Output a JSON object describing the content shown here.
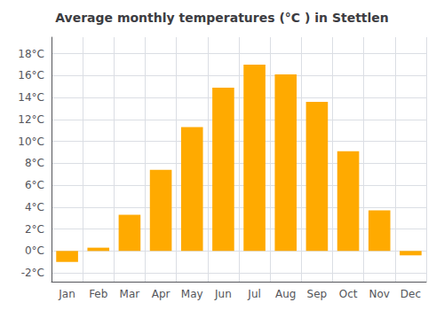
{
  "chart_data": {
    "type": "bar",
    "title": "Average monthly temperatures (°C ) in Stettlen",
    "categories": [
      "Jan",
      "Feb",
      "Mar",
      "Apr",
      "May",
      "Jun",
      "Jul",
      "Aug",
      "Sep",
      "Oct",
      "Nov",
      "Dec"
    ],
    "values": [
      -1.0,
      0.3,
      3.3,
      7.4,
      11.3,
      14.9,
      17.0,
      16.1,
      13.6,
      9.1,
      3.7,
      -0.4
    ],
    "color": "#FFAA00",
    "ylim": [
      -2.8,
      19.5
    ],
    "yticks": [
      {
        "value": -2,
        "label": "-2°C"
      },
      {
        "value": 0,
        "label": "0°C"
      },
      {
        "value": 2,
        "label": "2°C"
      },
      {
        "value": 4,
        "label": "4°C"
      },
      {
        "value": 6,
        "label": "6°C"
      },
      {
        "value": 8,
        "label": "8°C"
      },
      {
        "value": 10,
        "label": "10°C"
      },
      {
        "value": 12,
        "label": "12°C"
      },
      {
        "value": 14,
        "label": "14°C"
      },
      {
        "value": 16,
        "label": "16°C"
      },
      {
        "value": 18,
        "label": "18°C"
      }
    ],
    "grid": true
  }
}
